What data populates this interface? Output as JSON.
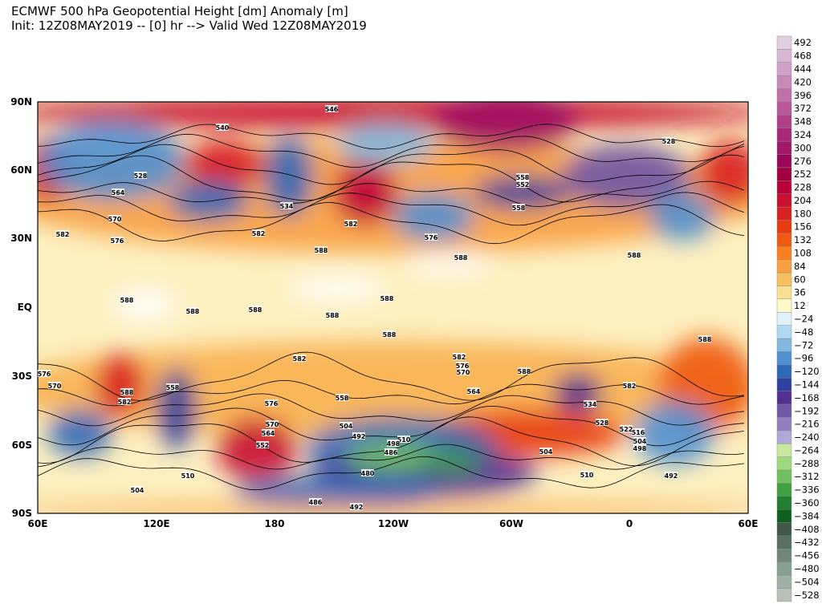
{
  "header": {
    "title": "ECMWF 500 hPa Geopotential Height [dm] Anomaly [m]",
    "subtitle": "Init: 12Z08MAY2019 -- [0] hr --> Valid Wed 12Z08MAY2019"
  },
  "map": {
    "lat_labels": [
      "90N",
      "60N",
      "30N",
      "EQ",
      "30S",
      "60S",
      "90S"
    ],
    "lon_labels": [
      "60E",
      "120E",
      "180",
      "120W",
      "60W",
      "0",
      "60E"
    ],
    "contour_labels": [
      "546",
      "540",
      "528",
      "564",
      "570",
      "582",
      "576",
      "582",
      "588",
      "534",
      "582",
      "576",
      "558",
      "552",
      "558",
      "588",
      "588",
      "528",
      "588",
      "588",
      "588",
      "588",
      "582",
      "582",
      "576",
      "570",
      "564",
      "588",
      "582",
      "558",
      "504",
      "492",
      "480",
      "510",
      "504",
      "492",
      "486",
      "504",
      "510",
      "492",
      "516",
      "504",
      "498",
      "576",
      "570",
      "564",
      "552",
      "588",
      "582",
      "558",
      "570",
      "576",
      "534",
      "528",
      "522",
      "588",
      "588",
      "588",
      "510",
      "498",
      "486"
    ]
  },
  "colorbar": {
    "labels": [
      "492",
      "468",
      "444",
      "420",
      "396",
      "372",
      "348",
      "324",
      "300",
      "276",
      "252",
      "228",
      "204",
      "180",
      "156",
      "132",
      "108",
      "84",
      "60",
      "36",
      "12",
      "−24",
      "−48",
      "−72",
      "−96",
      "−120",
      "−144",
      "−168",
      "−192",
      "−216",
      "−240",
      "−264",
      "−288",
      "−312",
      "−336",
      "−360",
      "−384",
      "−408",
      "−432",
      "−456",
      "−480",
      "−504",
      "−528"
    ],
    "colors": [
      "#e0d0e0",
      "#d8b8d0",
      "#d0a0c8",
      "#c888b8",
      "#c070a8",
      "#b85898",
      "#b04088",
      "#a82878",
      "#a01868",
      "#980858",
      "#a00040",
      "#b8003a",
      "#c81030",
      "#d82020",
      "#e83c10",
      "#f05a10",
      "#f88020",
      "#f8a040",
      "#f8c060",
      "#f8e090",
      "#fff8c8",
      "#e0f0f8",
      "#b0d8f0",
      "#80b8e0",
      "#5090d0",
      "#3068b8",
      "#3040a0",
      "#503090",
      "#7058a8",
      "#9080c0",
      "#b0a8d8",
      "#c8e8a0",
      "#a0d880",
      "#70c060",
      "#40a040",
      "#208030",
      "#106020",
      "#405848",
      "#587060",
      "#708878",
      "#88a090",
      "#a0b0a8",
      "#b8c0b8"
    ]
  }
}
